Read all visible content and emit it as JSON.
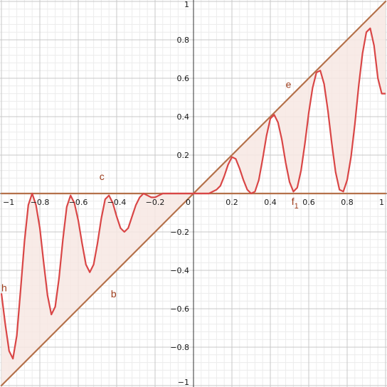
{
  "chart_data": {
    "type": "line",
    "title": "",
    "xlabel": "",
    "ylabel": "",
    "xlim": [
      -1,
      1
    ],
    "ylim": [
      -1,
      1
    ],
    "grid": true,
    "x_ticks": [
      -1,
      -0.8,
      -0.6,
      -0.4,
      -0.2,
      0,
      0.2,
      0.4,
      0.6,
      0.8,
      1
    ],
    "x_tick_labels": [
      "−1",
      "−0.8",
      "−0.6",
      "−0.4",
      "−0.2",
      "0",
      "0.2",
      "0.4",
      "0.6",
      "0.8",
      "1"
    ],
    "y_ticks": [
      -1,
      -0.8,
      -0.6,
      -0.4,
      -0.2,
      0.2,
      0.4,
      0.6,
      0.8,
      1
    ],
    "y_tick_labels": [
      "−1",
      "−0.8",
      "−0.6",
      "−0.4",
      "−0.2",
      "0.2",
      "0.4",
      "0.6",
      "0.8",
      "1"
    ],
    "colors": {
      "lines": "#b5714a",
      "curve": "#d94646",
      "fill": "#f7e7e3",
      "labels": "#9e3d1c",
      "grid_major": "#c8c8c8",
      "grid_minor": "#ececec"
    },
    "series": [
      {
        "name": "c",
        "kind": "line",
        "points": [
          [
            -1,
            0
          ],
          [
            0,
            0
          ]
        ]
      },
      {
        "name": "b",
        "kind": "line",
        "points": [
          [
            -1,
            -1
          ],
          [
            0,
            0
          ]
        ]
      },
      {
        "name": "e",
        "kind": "line",
        "points": [
          [
            0,
            0
          ],
          [
            1,
            1
          ]
        ]
      },
      {
        "name": "f₁",
        "kind": "line",
        "points": [
          [
            0,
            0
          ],
          [
            1,
            0
          ]
        ]
      },
      {
        "name": "h",
        "kind": "curve",
        "x": [
          -1,
          -0.98,
          -0.96,
          -0.94,
          -0.92,
          -0.9,
          -0.88,
          -0.86,
          -0.84,
          -0.82,
          -0.8,
          -0.78,
          -0.76,
          -0.74,
          -0.72,
          -0.7,
          -0.68,
          -0.66,
          -0.64,
          -0.62,
          -0.6,
          -0.58,
          -0.56,
          -0.54,
          -0.52,
          -0.5,
          -0.48,
          -0.46,
          -0.44,
          -0.42,
          -0.4,
          -0.38,
          -0.36,
          -0.34,
          -0.32,
          -0.3,
          -0.28,
          -0.26,
          -0.24,
          -0.22,
          -0.2,
          -0.18,
          -0.16,
          -0.14,
          -0.12,
          -0.1,
          -0.08,
          -0.06,
          -0.04,
          -0.02,
          0,
          0.02,
          0.04,
          0.06,
          0.08,
          0.1,
          0.12,
          0.14,
          0.16,
          0.18,
          0.2,
          0.22,
          0.24,
          0.26,
          0.28,
          0.3,
          0.32,
          0.34,
          0.36,
          0.38,
          0.4,
          0.42,
          0.44,
          0.46,
          0.48,
          0.5,
          0.52,
          0.54,
          0.56,
          0.58,
          0.6,
          0.62,
          0.64,
          0.66,
          0.68,
          0.7,
          0.72,
          0.74,
          0.76,
          0.78,
          0.8,
          0.82,
          0.84,
          0.86,
          0.88,
          0.9,
          0.92,
          0.94,
          0.96,
          0.98,
          1
        ],
        "y": [
          -0.52,
          -0.68,
          -0.82,
          -0.86,
          -0.74,
          -0.5,
          -0.25,
          -0.06,
          0,
          -0.06,
          -0.18,
          -0.36,
          -0.53,
          -0.63,
          -0.59,
          -0.44,
          -0.24,
          -0.07,
          -0.01,
          -0.05,
          -0.14,
          -0.26,
          -0.37,
          -0.41,
          -0.37,
          -0.26,
          -0.13,
          -0.03,
          -0.01,
          -0.05,
          -0.12,
          -0.18,
          -0.2,
          -0.18,
          -0.12,
          -0.06,
          -0.02,
          0,
          -0.01,
          -0.02,
          -0.02,
          -0.01,
          0,
          0,
          0,
          0,
          0,
          0,
          0,
          0,
          0,
          0,
          0,
          0,
          0,
          0.01,
          0.02,
          0.04,
          0.09,
          0.15,
          0.19,
          0.18,
          0.13,
          0.07,
          0.02,
          0,
          0.01,
          0.07,
          0.18,
          0.3,
          0.39,
          0.41,
          0.37,
          0.28,
          0.16,
          0.06,
          0.01,
          0.03,
          0.12,
          0.26,
          0.42,
          0.55,
          0.63,
          0.64,
          0.57,
          0.43,
          0.26,
          0.11,
          0.02,
          0.01,
          0.07,
          0.19,
          0.36,
          0.56,
          0.73,
          0.84,
          0.86,
          0.77,
          0.6,
          0.52,
          0.52
        ]
      }
    ],
    "shaded_regions": [
      {
        "between": [
          "h",
          "b"
        ],
        "x_range": [
          -1,
          0
        ]
      },
      {
        "between": [
          "h",
          "e"
        ],
        "x_range": [
          0,
          1
        ]
      }
    ],
    "labels": [
      {
        "text": "c",
        "x": -0.49,
        "y": 0.07
      },
      {
        "text": "b",
        "x": -0.43,
        "y": -0.54
      },
      {
        "text": "e",
        "x": 0.48,
        "y": 0.55
      },
      {
        "text": "f",
        "subscript": "1",
        "x": 0.51,
        "y": -0.06
      },
      {
        "text": "h",
        "x": -1,
        "y": -0.51
      }
    ]
  }
}
